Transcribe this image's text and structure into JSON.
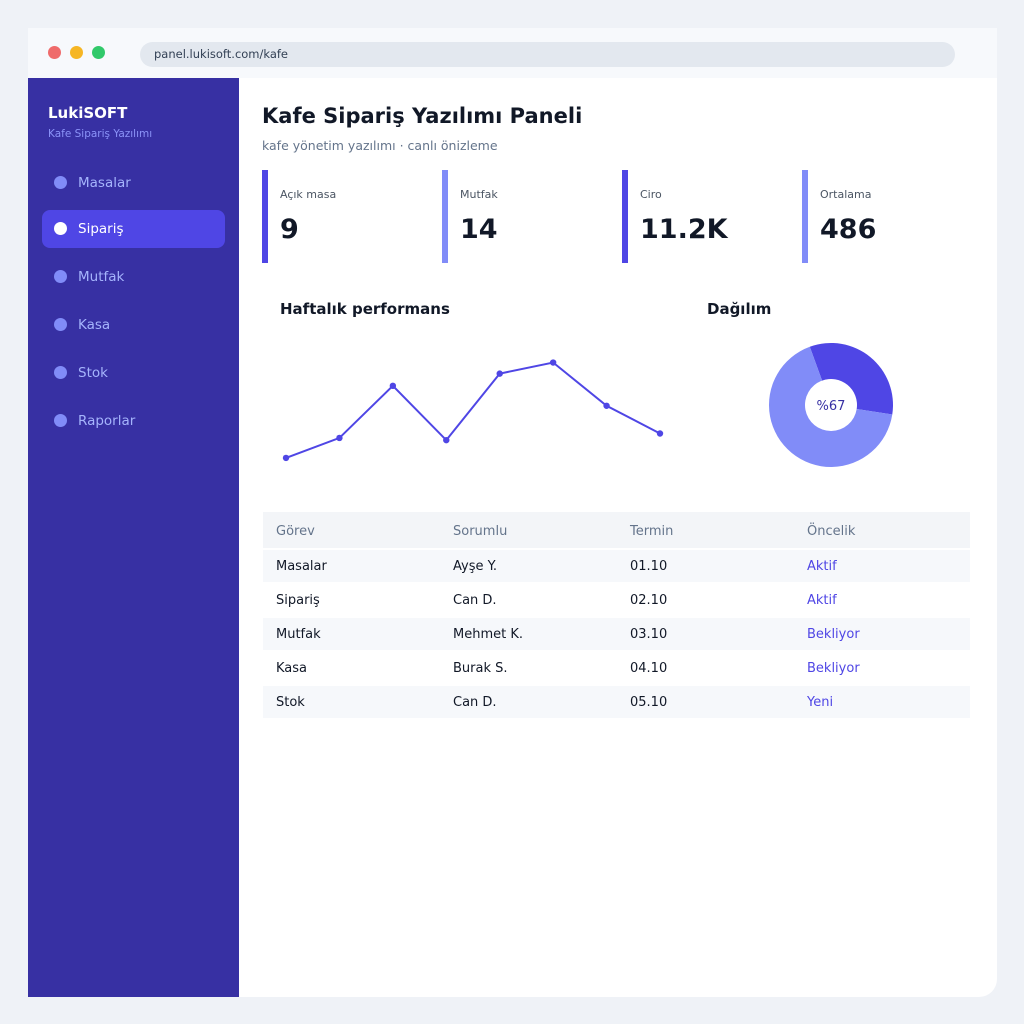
{
  "browser": {
    "url": "panel.lukisoft.com/kafe"
  },
  "sidebar": {
    "brand": "LukiSOFT",
    "subtitle": "Kafe Sipariş Yazılımı",
    "items": [
      {
        "label": "Masalar",
        "active": false
      },
      {
        "label": "Sipariş",
        "active": true
      },
      {
        "label": "Mutfak",
        "active": false
      },
      {
        "label": "Kasa",
        "active": false
      },
      {
        "label": "Stok",
        "active": false
      },
      {
        "label": "Raporlar",
        "active": false
      }
    ]
  },
  "header": {
    "title": "Kafe Sipariş Yazılımı Paneli",
    "subtitle": "kafe yönetim yazılımı · canlı önizleme"
  },
  "stats": [
    {
      "label": "Açık masa",
      "value": "9",
      "color": "#4f46e5"
    },
    {
      "label": "Mutfak",
      "value": "14",
      "color": "#818cf8"
    },
    {
      "label": "Ciro",
      "value": "11.2K",
      "color": "#4f46e5"
    },
    {
      "label": "Ortalama",
      "value": "486",
      "color": "#818cf8"
    }
  ],
  "weekly": {
    "title": "Haftalık performans"
  },
  "distribution": {
    "title": "Dağılım",
    "label": "%67"
  },
  "chart_data": [
    {
      "type": "line",
      "x": [
        1,
        2,
        3,
        4,
        5,
        6,
        7,
        8
      ],
      "series": [
        {
          "values": [
            10,
            28,
            75,
            26,
            86,
            96,
            57,
            32
          ]
        }
      ],
      "ylim": [
        0,
        110
      ],
      "grid": false,
      "color": "#4f46e5"
    },
    {
      "type": "pie",
      "style": "donut",
      "values": [
        33,
        67
      ],
      "colors": [
        "#4f46e5",
        "#818cf8"
      ]
    }
  ],
  "table": {
    "headers": [
      "Görev",
      "Sorumlu",
      "Termin",
      "Öncelik"
    ],
    "rows": [
      [
        "Masalar",
        "Ayşe Y.",
        "01.10",
        "Aktif"
      ],
      [
        "Sipariş",
        "Can D.",
        "02.10",
        "Aktif"
      ],
      [
        "Mutfak",
        "Mehmet K.",
        "03.10",
        "Bekliyor"
      ],
      [
        "Kasa",
        "Burak S.",
        "04.10",
        "Bekliyor"
      ],
      [
        "Stok",
        "Can D.",
        "05.10",
        "Yeni"
      ]
    ]
  },
  "colors": {
    "primary": "#4f46e5",
    "secondary": "#818cf8",
    "sidebar": "#3730a3"
  }
}
